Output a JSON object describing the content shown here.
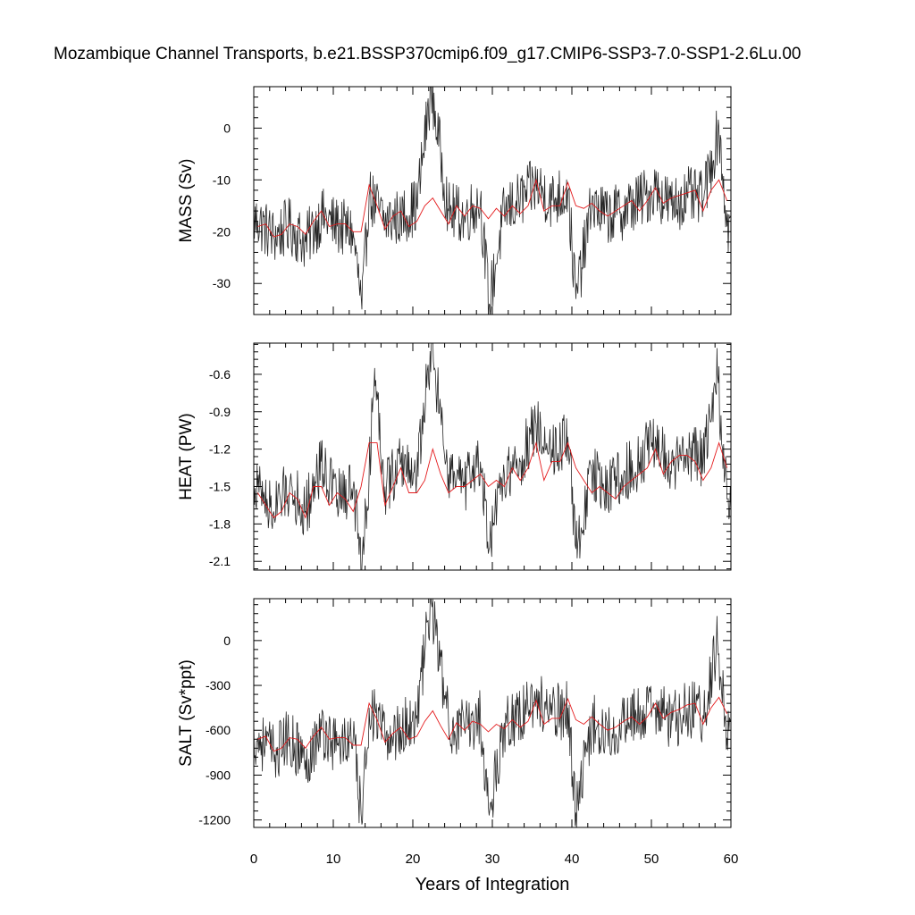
{
  "figure": {
    "title": "Mozambique Channel Transports, b.e21.BSSP370cmip6.f09_g17.CMIP6-SSP3-7.0-SSP1-2.6Lu.00",
    "xlabel": "Years of Integration"
  },
  "chart_data": [
    {
      "type": "line",
      "ylabel": "MASS (Sv)",
      "xlim": [
        0,
        60
      ],
      "ylim": [
        -36,
        8
      ],
      "yticks": [
        0,
        -10,
        -20,
        -30
      ],
      "ytick_labels": [
        "0",
        "-10",
        "-20",
        "-30"
      ],
      "xticks": [
        0,
        10,
        20,
        30,
        40,
        50,
        60
      ],
      "xtick_labels": [
        "0",
        "10",
        "20",
        "30",
        "40",
        "50",
        "60"
      ],
      "grid": false,
      "series": [
        {
          "color": "#000000",
          "style": "monthly",
          "x": [
            0.5,
            2.5,
            4.5,
            6.5,
            8.5,
            10.5,
            12.5,
            13.6,
            14.5,
            16.5,
            18.5,
            20.5,
            22.3,
            24.5,
            26.5,
            28.5,
            29.6,
            31.5,
            33.5,
            35.5,
            37.5,
            39.5,
            40.5,
            42.5,
            44.5,
            46.5,
            48.5,
            50.5,
            52.5,
            54.5,
            56.5,
            58.5,
            59.5
          ],
          "y": [
            -18,
            -21,
            -19,
            -22,
            -17,
            -19,
            -20,
            -35,
            -13,
            -18,
            -17,
            -15,
            8,
            -16,
            -17,
            -14,
            -34,
            -16,
            -14,
            -11,
            -14,
            -12,
            -33,
            -15,
            -17,
            -16,
            -14,
            -12,
            -15,
            -13,
            -14,
            0,
            -19
          ]
        },
        {
          "color": "#e41a1c",
          "style": "annual",
          "x": [
            0.5,
            1.5,
            2.5,
            3.5,
            4.5,
            5.5,
            6.5,
            7.5,
            8.5,
            9.5,
            10.5,
            11.5,
            12.5,
            13.5,
            14.5,
            15.5,
            16.5,
            17.5,
            18.5,
            19.5,
            20.5,
            21.5,
            22.5,
            23.5,
            24.5,
            25.5,
            26.5,
            27.5,
            28.5,
            29.5,
            30.5,
            31.5,
            32.5,
            33.5,
            34.5,
            35.5,
            36.5,
            37.5,
            38.5,
            39.5,
            40.5,
            41.5,
            42.5,
            43.5,
            44.5,
            45.5,
            46.5,
            47.5,
            48.5,
            49.5,
            50.5,
            51.5,
            52.5,
            53.5,
            54.5,
            55.5,
            56.5,
            57.5,
            58.5,
            59.5
          ],
          "y": [
            -19,
            -18.5,
            -21,
            -20.5,
            -18.5,
            -19,
            -20.5,
            -18,
            -16,
            -19,
            -18.5,
            -18.5,
            -20,
            -20,
            -11,
            -15,
            -19.5,
            -17,
            -16,
            -19,
            -18,
            -15,
            -13.5,
            -16,
            -18.5,
            -15,
            -17,
            -15,
            -15.5,
            -17.5,
            -15.5,
            -17,
            -15,
            -16.5,
            -15,
            -10,
            -16,
            -15,
            -15,
            -10.5,
            -15,
            -15.5,
            -14.5,
            -16,
            -17,
            -16,
            -15,
            -14,
            -16,
            -14,
            -11.5,
            -14.5,
            -13.5,
            -13,
            -12.5,
            -12,
            -16,
            -12,
            -10,
            -14
          ]
        }
      ]
    },
    {
      "type": "line",
      "ylabel": "HEAT (PW)",
      "xlim": [
        0,
        60
      ],
      "ylim": [
        -2.17,
        -0.35
      ],
      "yticks": [
        -0.6,
        -0.9,
        -1.2,
        -1.5,
        -1.8,
        -2.1
      ],
      "ytick_labels": [
        "-0.6",
        "-0.9",
        "-1.2",
        "-1.5",
        "-1.8",
        "-2.1"
      ],
      "xticks": [
        0,
        10,
        20,
        30,
        40,
        50,
        60
      ],
      "xtick_labels": [
        "0",
        "10",
        "20",
        "30",
        "40",
        "50",
        "60"
      ],
      "grid": false,
      "series": [
        {
          "color": "#000000",
          "style": "monthly",
          "x": [
            0.5,
            2.5,
            4.5,
            6.5,
            8.5,
            10.5,
            12.5,
            13.6,
            14.5,
            15.2,
            16.5,
            18.5,
            20.5,
            22.3,
            24.5,
            26.5,
            28.5,
            29.6,
            31.5,
            33.5,
            35.5,
            37.5,
            39.5,
            40.5,
            42.5,
            44.5,
            46.5,
            48.5,
            50.5,
            52.5,
            54.5,
            56.5,
            58.3,
            59.5
          ],
          "y": [
            -1.5,
            -1.7,
            -1.5,
            -1.7,
            -1.3,
            -1.6,
            -1.5,
            -2.15,
            -1.4,
            -0.55,
            -1.5,
            -1.3,
            -1.4,
            -0.38,
            -1.4,
            -1.5,
            -1.3,
            -2.0,
            -1.4,
            -1.3,
            -1.0,
            -1.2,
            -1.1,
            -2.0,
            -1.4,
            -1.5,
            -1.4,
            -1.3,
            -1.1,
            -1.4,
            -1.2,
            -1.3,
            -0.6,
            -1.6
          ]
        },
        {
          "color": "#e41a1c",
          "style": "annual",
          "x": [
            0.5,
            1.5,
            2.5,
            3.5,
            4.5,
            5.5,
            6.5,
            7.5,
            8.5,
            9.5,
            10.5,
            11.5,
            12.5,
            13.5,
            14.5,
            15.5,
            16.5,
            17.5,
            18.5,
            19.5,
            20.5,
            21.5,
            22.5,
            23.5,
            24.5,
            25.5,
            26.5,
            27.5,
            28.5,
            29.5,
            30.5,
            31.5,
            32.5,
            33.5,
            34.5,
            35.5,
            36.5,
            37.5,
            38.5,
            39.5,
            40.5,
            41.5,
            42.5,
            43.5,
            44.5,
            45.5,
            46.5,
            47.5,
            48.5,
            49.5,
            50.5,
            51.5,
            52.5,
            53.5,
            54.5,
            55.5,
            56.5,
            57.5,
            58.5,
            59.5
          ],
          "y": [
            -1.55,
            -1.65,
            -1.75,
            -1.7,
            -1.55,
            -1.6,
            -1.75,
            -1.5,
            -1.5,
            -1.65,
            -1.55,
            -1.6,
            -1.7,
            -1.5,
            -1.15,
            -1.15,
            -1.65,
            -1.5,
            -1.35,
            -1.55,
            -1.55,
            -1.45,
            -1.2,
            -1.4,
            -1.55,
            -1.5,
            -1.5,
            -1.45,
            -1.4,
            -1.5,
            -1.45,
            -1.5,
            -1.35,
            -1.45,
            -1.35,
            -1.15,
            -1.45,
            -1.3,
            -1.3,
            -1.15,
            -1.35,
            -1.45,
            -1.55,
            -1.5,
            -1.55,
            -1.6,
            -1.5,
            -1.45,
            -1.4,
            -1.35,
            -1.2,
            -1.4,
            -1.3,
            -1.25,
            -1.25,
            -1.3,
            -1.45,
            -1.35,
            -1.15,
            -1.35
          ]
        }
      ]
    },
    {
      "type": "line",
      "ylabel": "SALT (Sv*ppt)",
      "xlim": [
        0,
        60
      ],
      "ylim": [
        -1250,
        280
      ],
      "yticks": [
        0,
        -300,
        -600,
        -900,
        -1200
      ],
      "ytick_labels": [
        "0",
        "-300",
        "-600",
        "-900",
        "-1200"
      ],
      "xticks": [
        0,
        10,
        20,
        30,
        40,
        50,
        60
      ],
      "xtick_labels": [
        "0",
        "10",
        "20",
        "30",
        "40",
        "50",
        "60"
      ],
      "grid": false,
      "series": [
        {
          "color": "#000000",
          "style": "monthly",
          "x": [
            0.5,
            2.5,
            4.5,
            6.5,
            8.5,
            10.5,
            12.5,
            13.6,
            14.5,
            16.5,
            18.5,
            20.5,
            22.3,
            24.5,
            26.5,
            28.5,
            29.6,
            31.5,
            33.5,
            35.5,
            37.5,
            39.5,
            40.5,
            42.5,
            44.5,
            46.5,
            48.5,
            50.5,
            52.5,
            54.5,
            56.5,
            58.3,
            59.5
          ],
          "y": [
            -650,
            -750,
            -650,
            -800,
            -600,
            -700,
            -650,
            -1230,
            -450,
            -650,
            -600,
            -500,
            270,
            -550,
            -600,
            -500,
            -1170,
            -550,
            -500,
            -380,
            -500,
            -450,
            -1150,
            -550,
            -600,
            -550,
            -500,
            -450,
            -550,
            -450,
            -500,
            0,
            -650
          ]
        },
        {
          "color": "#e41a1c",
          "style": "annual",
          "x": [
            0.5,
            1.5,
            2.5,
            3.5,
            4.5,
            5.5,
            6.5,
            7.5,
            8.5,
            9.5,
            10.5,
            11.5,
            12.5,
            13.5,
            14.5,
            15.5,
            16.5,
            17.5,
            18.5,
            19.5,
            20.5,
            21.5,
            22.5,
            23.5,
            24.5,
            25.5,
            26.5,
            27.5,
            28.5,
            29.5,
            30.5,
            31.5,
            32.5,
            33.5,
            34.5,
            35.5,
            36.5,
            37.5,
            38.5,
            39.5,
            40.5,
            41.5,
            42.5,
            43.5,
            44.5,
            45.5,
            46.5,
            47.5,
            48.5,
            49.5,
            50.5,
            51.5,
            52.5,
            53.5,
            54.5,
            55.5,
            56.5,
            57.5,
            58.5,
            59.5
          ],
          "y": [
            -660,
            -640,
            -740,
            -720,
            -650,
            -660,
            -720,
            -640,
            -580,
            -660,
            -650,
            -650,
            -700,
            -700,
            -420,
            -530,
            -680,
            -620,
            -580,
            -660,
            -640,
            -540,
            -470,
            -570,
            -660,
            -550,
            -600,
            -540,
            -560,
            -610,
            -560,
            -590,
            -530,
            -580,
            -540,
            -400,
            -560,
            -520,
            -520,
            -390,
            -530,
            -560,
            -510,
            -560,
            -600,
            -580,
            -540,
            -510,
            -560,
            -510,
            -420,
            -520,
            -480,
            -460,
            -430,
            -420,
            -560,
            -450,
            -380,
            -490
          ]
        }
      ]
    }
  ]
}
